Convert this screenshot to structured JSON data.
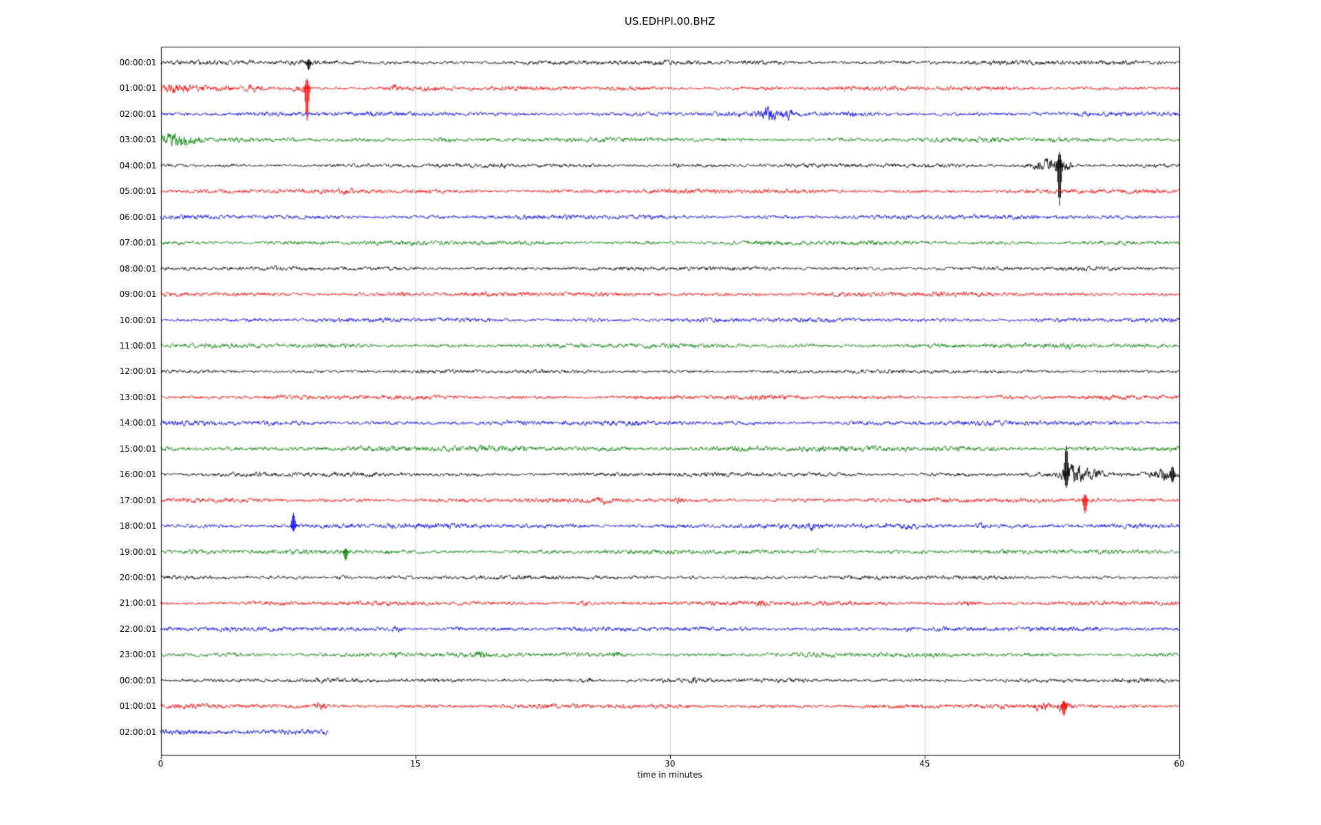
{
  "chart_data": {
    "type": "line",
    "subtype": "seismogram-dayplot",
    "title": "US.EDHPI.00.BHZ",
    "xlabel": "time in minutes",
    "xlim": [
      0,
      60
    ],
    "x_ticks": [
      0,
      15,
      30,
      45,
      60
    ],
    "grid": {
      "vertical_lines_at": [
        15,
        30,
        45
      ],
      "color": "#cccccc"
    },
    "trace_color_cycle": [
      "#000000",
      "#ff0000",
      "#0000ff",
      "#008000"
    ],
    "rows": [
      {
        "label": "00:00:01",
        "color": "#000000",
        "base_amp": 1.0,
        "bursts": [],
        "spikes": [
          {
            "t": 8.72,
            "up": 5,
            "down": 11
          }
        ]
      },
      {
        "label": "01:00:01",
        "color": "#ff0000",
        "base_amp": 1.0,
        "bursts": [
          {
            "t": 1.0,
            "amp": 1.0,
            "dur": 1.5
          },
          {
            "t": 4.0,
            "amp": 0.8,
            "dur": 1.2
          },
          {
            "t": 5.5,
            "amp": 1.2,
            "dur": 0.5
          },
          {
            "t": 8.3,
            "amp": 1.5,
            "dur": 0.4
          },
          {
            "t": 13.7,
            "amp": 1.2,
            "dur": 0.25
          },
          {
            "t": 15.8,
            "amp": 0.8,
            "dur": 0.3
          },
          {
            "t": 27.0,
            "amp": 0.5,
            "dur": 0.4
          }
        ],
        "spikes": [
          {
            "t": 8.62,
            "up": 14,
            "down": 47
          }
        ]
      },
      {
        "label": "02:00:01",
        "color": "#0000ff",
        "base_amp": 1.0,
        "bursts": [
          {
            "t": 35.8,
            "amp": 2.5,
            "dur": 0.5
          },
          {
            "t": 36.9,
            "amp": 2.0,
            "dur": 0.45
          },
          {
            "t": 40.6,
            "amp": 0.8,
            "dur": 0.3
          }
        ],
        "spikes": []
      },
      {
        "label": "03:00:01",
        "color": "#008000",
        "base_amp": 1.0,
        "bursts": [
          {
            "t": 0.6,
            "amp": 3.0,
            "dur": 0.5
          },
          {
            "t": 1.5,
            "amp": 2.0,
            "dur": 0.8
          },
          {
            "t": 16.6,
            "amp": 1.2,
            "dur": 0.5
          },
          {
            "t": 49.0,
            "amp": 0.4,
            "dur": 0.6
          }
        ],
        "spikes": []
      },
      {
        "label": "04:00:01",
        "color": "#000000",
        "base_amp": 0.9,
        "bursts": [
          {
            "t": 20.2,
            "amp": 1.0,
            "dur": 0.15
          },
          {
            "t": 30.4,
            "amp": 1.2,
            "dur": 0.2
          },
          {
            "t": 52.0,
            "amp": 2.5,
            "dur": 0.8
          },
          {
            "t": 53.0,
            "amp": 3.5,
            "dur": 0.6
          }
        ],
        "spikes": [
          {
            "t": 52.95,
            "up": 20,
            "down": 58
          }
        ]
      },
      {
        "label": "05:00:01",
        "color": "#ff0000",
        "base_amp": 1.0,
        "bursts": [
          {
            "t": 11.0,
            "amp": 0.4,
            "dur": 0.4
          }
        ],
        "spikes": []
      },
      {
        "label": "06:00:01",
        "color": "#0000ff",
        "base_amp": 1.0,
        "bursts": [],
        "spikes": []
      },
      {
        "label": "07:00:01",
        "color": "#008000",
        "base_amp": 1.0,
        "bursts": [],
        "spikes": []
      },
      {
        "label": "08:00:01",
        "color": "#000000",
        "base_amp": 0.9,
        "bursts": [],
        "spikes": []
      },
      {
        "label": "09:00:01",
        "color": "#ff0000",
        "base_amp": 1.0,
        "bursts": [
          {
            "t": 14.3,
            "amp": 0.5,
            "dur": 0.3
          }
        ],
        "spikes": []
      },
      {
        "label": "10:00:01",
        "color": "#0000ff",
        "base_amp": 1.0,
        "bursts": [],
        "spikes": []
      },
      {
        "label": "11:00:01",
        "color": "#008000",
        "base_amp": 1.0,
        "bursts": [
          {
            "t": 53.6,
            "amp": 0.5,
            "dur": 0.5
          }
        ],
        "spikes": []
      },
      {
        "label": "12:00:01",
        "color": "#000000",
        "base_amp": 0.85,
        "bursts": [],
        "spikes": []
      },
      {
        "label": "13:00:01",
        "color": "#ff0000",
        "base_amp": 1.0,
        "bursts": [],
        "spikes": []
      },
      {
        "label": "14:00:01",
        "color": "#0000ff",
        "base_amp": 1.05,
        "bursts": [
          {
            "t": 2.0,
            "amp": 0.3,
            "dur": 1.0
          }
        ],
        "spikes": []
      },
      {
        "label": "15:00:01",
        "color": "#008000",
        "base_amp": 1.25,
        "bursts": [],
        "spikes": []
      },
      {
        "label": "16:00:01",
        "color": "#000000",
        "base_amp": 0.95,
        "bursts": [
          {
            "t": 53.8,
            "amp": 3.0,
            "dur": 0.7
          },
          {
            "t": 55.0,
            "amp": 1.5,
            "dur": 0.6
          },
          {
            "t": 59.0,
            "amp": 2.5,
            "dur": 0.5
          }
        ],
        "spikes": [
          {
            "t": 53.35,
            "up": 42,
            "down": 20
          },
          {
            "t": 59.6,
            "up": 12,
            "down": 12
          }
        ]
      },
      {
        "label": "17:00:01",
        "color": "#ff0000",
        "base_amp": 1.0,
        "bursts": [
          {
            "t": 26.0,
            "amp": 0.8,
            "dur": 0.3
          },
          {
            "t": 30.6,
            "amp": 0.8,
            "dur": 0.3
          },
          {
            "t": 55.0,
            "amp": 0.8,
            "dur": 0.3
          }
        ],
        "spikes": [
          {
            "t": 54.45,
            "up": 9,
            "down": 19
          }
        ]
      },
      {
        "label": "18:00:01",
        "color": "#0000ff",
        "base_amp": 1.1,
        "bursts": [
          {
            "t": 38.3,
            "amp": 1.0,
            "dur": 0.3
          },
          {
            "t": 44.0,
            "amp": 0.6,
            "dur": 0.3
          },
          {
            "t": 48.3,
            "amp": 1.0,
            "dur": 0.35
          }
        ],
        "spikes": [
          {
            "t": 7.82,
            "up": 19,
            "down": 8
          }
        ]
      },
      {
        "label": "19:00:01",
        "color": "#008000",
        "base_amp": 1.0,
        "bursts": [
          {
            "t": 13.5,
            "amp": 0.8,
            "dur": 0.25
          },
          {
            "t": 38.6,
            "amp": 0.9,
            "dur": 0.3
          },
          {
            "t": 44.9,
            "amp": 0.6,
            "dur": 0.25
          }
        ],
        "spikes": [
          {
            "t": 10.9,
            "up": 5,
            "down": 13
          }
        ]
      },
      {
        "label": "20:00:01",
        "color": "#000000",
        "base_amp": 0.9,
        "bursts": [
          {
            "t": 10.8,
            "amp": 1.0,
            "dur": 0.3
          },
          {
            "t": 31.4,
            "amp": 1.0,
            "dur": 0.25
          }
        ],
        "spikes": []
      },
      {
        "label": "21:00:01",
        "color": "#ff0000",
        "base_amp": 1.0,
        "bursts": [
          {
            "t": 24.9,
            "amp": 1.2,
            "dur": 0.3
          },
          {
            "t": 35.4,
            "amp": 1.0,
            "dur": 0.3
          },
          {
            "t": 47.6,
            "amp": 1.2,
            "dur": 0.3
          }
        ],
        "spikes": []
      },
      {
        "label": "22:00:01",
        "color": "#0000ff",
        "base_amp": 1.0,
        "bursts": [
          {
            "t": 13.9,
            "amp": 1.2,
            "dur": 0.3
          },
          {
            "t": 17.4,
            "amp": 1.0,
            "dur": 0.3
          },
          {
            "t": 43.9,
            "amp": 0.6,
            "dur": 0.3
          }
        ],
        "spikes": []
      },
      {
        "label": "23:00:01",
        "color": "#008000",
        "base_amp": 1.0,
        "bursts": [
          {
            "t": 13.9,
            "amp": 1.2,
            "dur": 0.3
          },
          {
            "t": 18.9,
            "amp": 0.7,
            "dur": 0.3
          },
          {
            "t": 26.9,
            "amp": 1.4,
            "dur": 0.35
          }
        ],
        "spikes": []
      },
      {
        "label": "00:00:01",
        "color": "#000000",
        "base_amp": 0.9,
        "bursts": [
          {
            "t": 20.3,
            "amp": 0.6,
            "dur": 0.25
          },
          {
            "t": 25.1,
            "amp": 1.2,
            "dur": 0.3
          },
          {
            "t": 31.4,
            "amp": 0.8,
            "dur": 0.2
          }
        ],
        "spikes": []
      },
      {
        "label": "01:00:01",
        "color": "#ff0000",
        "base_amp": 1.0,
        "bursts": [
          {
            "t": 9.4,
            "amp": 1.2,
            "dur": 0.3
          },
          {
            "t": 51.9,
            "amp": 1.5,
            "dur": 0.4
          },
          {
            "t": 53.2,
            "amp": 2.0,
            "dur": 0.4
          }
        ],
        "spikes": [
          {
            "t": 53.2,
            "up": 8,
            "down": 14
          }
        ]
      },
      {
        "label": "02:00:01",
        "color": "#0000ff",
        "base_amp": 1.45,
        "end_min": 9.85,
        "bursts": [],
        "spikes": []
      }
    ]
  }
}
